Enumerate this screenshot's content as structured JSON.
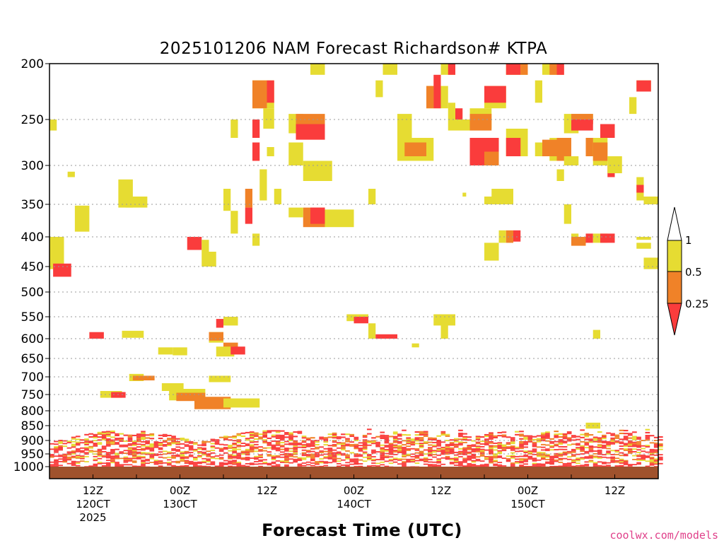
{
  "chart_data": {
    "type": "heatmap",
    "title": "2025101206 NAM Forecast Richardson# KTPA",
    "xlabel": "Forecast Time (UTC)",
    "ylabel": "",
    "credit": "coolwx.com/models",
    "y_scale": "pressure (log-like, inverted)",
    "ylim": [
      1000,
      200
    ],
    "xlim_hours": [
      0,
      84
    ],
    "grid": "dotted horizontal lines at pressure levels",
    "y_ticks": [
      "200",
      "250",
      "300",
      "350",
      "400",
      "450",
      "500",
      "550",
      "600",
      "650",
      "700",
      "750",
      "800",
      "850",
      "900",
      "950",
      "1000"
    ],
    "x_ticks": [
      {
        "hour": 6,
        "lines": [
          "12Z",
          "120CT",
          "2025"
        ]
      },
      {
        "hour": 18,
        "lines": [
          "00Z",
          "130CT"
        ]
      },
      {
        "hour": 30,
        "lines": [
          "12Z"
        ]
      },
      {
        "hour": 42,
        "lines": [
          "00Z",
          "140CT"
        ]
      },
      {
        "hour": 54,
        "lines": [
          "12Z"
        ]
      },
      {
        "hour": 66,
        "lines": [
          "00Z",
          "150CT"
        ]
      },
      {
        "hour": 78,
        "lines": [
          "12Z"
        ]
      }
    ],
    "colorbar": {
      "labels": [
        "1",
        "0.5",
        "0.25"
      ],
      "bins": [
        {
          "range": "0.5–1",
          "color": "#e6dc32"
        },
        {
          "range": "0.25–0.5",
          "color": "#f08228"
        },
        {
          "range": "<0.25",
          "color": "#fa3c3c"
        }
      ]
    },
    "colors": {
      "y": "#e6dc32",
      "o": "#f08228",
      "r": "#fa3c3c",
      "ground": "#a0522d"
    },
    "cells": [
      [
        "y",
        0,
        1,
        250,
        262
      ],
      [
        "y",
        0,
        2,
        400,
        455
      ],
      [
        "r",
        0.5,
        3,
        445,
        470
      ],
      [
        "y",
        2.5,
        3.5,
        308,
        315
      ],
      [
        "y",
        3.5,
        5.5,
        352,
        392
      ],
      [
        "y",
        9.5,
        11.5,
        318,
        355
      ],
      [
        "y",
        10,
        13,
        582,
        598
      ],
      [
        "r",
        5.5,
        7.5,
        585,
        600
      ],
      [
        "y",
        11,
        13,
        692,
        712
      ],
      [
        "o",
        11.5,
        14.5,
        697,
        710
      ],
      [
        "y",
        7,
        10,
        740,
        760
      ],
      [
        "r",
        8.5,
        10.5,
        743,
        760
      ],
      [
        "y",
        10.5,
        13.5,
        340,
        355
      ],
      [
        "r",
        19,
        21,
        400,
        422
      ],
      [
        "y",
        21,
        22,
        405,
        425
      ],
      [
        "y",
        21,
        23,
        425,
        450
      ],
      [
        "y",
        15.5,
        18.5,
        718,
        740
      ],
      [
        "y",
        16.5,
        21.5,
        734,
        768
      ],
      [
        "o",
        17.5,
        21.5,
        745,
        770
      ],
      [
        "o",
        20,
        25,
        757,
        795
      ],
      [
        "y",
        24,
        29,
        762,
        790
      ],
      [
        "y",
        22,
        25,
        697,
        715
      ],
      [
        "y",
        22,
        24,
        585,
        610
      ],
      [
        "o",
        22,
        24,
        585,
        605
      ],
      [
        "o",
        24,
        26,
        610,
        635
      ],
      [
        "y",
        23,
        25.5,
        620,
        645
      ],
      [
        "r",
        25,
        27,
        620,
        640
      ],
      [
        "y",
        17,
        19,
        622,
        642
      ],
      [
        "y",
        15,
        17,
        622,
        640
      ],
      [
        "y",
        24,
        26,
        550,
        570
      ],
      [
        "r",
        23,
        24,
        555,
        575
      ],
      [
        "y",
        24,
        25,
        330,
        360
      ],
      [
        "y",
        25,
        26,
        360,
        395
      ],
      [
        "o",
        27,
        28,
        330,
        355
      ],
      [
        "r",
        27,
        28,
        355,
        380
      ],
      [
        "y",
        25,
        26,
        250,
        270
      ],
      [
        "y",
        28,
        31,
        215,
        240
      ],
      [
        "o",
        28,
        30,
        215,
        240
      ],
      [
        "r",
        30,
        31,
        215,
        235
      ],
      [
        "r",
        28,
        29,
        250,
        270
      ],
      [
        "y",
        29.5,
        31,
        240,
        260
      ],
      [
        "r",
        28,
        29,
        275,
        295
      ],
      [
        "y",
        29,
        30,
        305,
        325
      ],
      [
        "y",
        30,
        31,
        280,
        290
      ],
      [
        "y",
        29,
        30,
        325,
        345
      ],
      [
        "y",
        31,
        32,
        330,
        350
      ],
      [
        "y",
        28,
        29,
        395,
        415
      ],
      [
        "y",
        33,
        35,
        245,
        265
      ],
      [
        "y",
        33,
        35,
        275,
        300
      ],
      [
        "o",
        34,
        38,
        245,
        265
      ],
      [
        "r",
        34,
        38,
        255,
        272
      ],
      [
        "y",
        35,
        39,
        295,
        320
      ],
      [
        "o",
        35,
        38,
        355,
        385
      ],
      [
        "r",
        36,
        38,
        355,
        380
      ],
      [
        "y",
        38,
        42,
        358,
        385
      ],
      [
        "y",
        33,
        35,
        355,
        370
      ],
      [
        "y",
        36,
        38,
        200,
        210
      ],
      [
        "y",
        46,
        48,
        200,
        210
      ],
      [
        "y",
        45,
        46,
        215,
        230
      ],
      [
        "y",
        48,
        50,
        245,
        270
      ],
      [
        "y",
        48,
        53,
        270,
        295
      ],
      [
        "o",
        49,
        52,
        275,
        290
      ],
      [
        "y",
        44,
        45,
        330,
        350
      ],
      [
        "y",
        41,
        44,
        545,
        560
      ],
      [
        "r",
        42,
        44,
        550,
        565
      ],
      [
        "y",
        44,
        45,
        565,
        600
      ],
      [
        "r",
        45,
        48,
        590,
        600
      ],
      [
        "y",
        53,
        56,
        545,
        570
      ],
      [
        "y",
        54,
        55,
        565,
        600
      ],
      [
        "y",
        50,
        51,
        612,
        622
      ],
      [
        "y",
        57,
        57.5,
        335,
        340
      ],
      [
        "y",
        52,
        55,
        220,
        240
      ],
      [
        "o",
        52,
        53,
        220,
        240
      ],
      [
        "r",
        53,
        54,
        210,
        240
      ],
      [
        "y",
        54,
        56,
        200,
        210
      ],
      [
        "r",
        55,
        56,
        200,
        210
      ],
      [
        "y",
        55,
        56,
        235,
        262
      ],
      [
        "r",
        56,
        57,
        240,
        255
      ],
      [
        "y",
        56,
        58,
        250,
        262
      ],
      [
        "y",
        58,
        60,
        290,
        300
      ],
      [
        "r",
        58,
        62,
        270,
        300
      ],
      [
        "o",
        60,
        62,
        285,
        300
      ],
      [
        "y",
        58,
        61,
        240,
        260
      ],
      [
        "o",
        58,
        61,
        245,
        262
      ],
      [
        "y",
        60,
        63,
        220,
        240
      ],
      [
        "r",
        60,
        63,
        220,
        235
      ],
      [
        "y",
        63,
        66,
        260,
        290
      ],
      [
        "r",
        63,
        65,
        270,
        290
      ],
      [
        "y",
        60,
        63,
        340,
        350
      ],
      [
        "y",
        61,
        64,
        330,
        350
      ],
      [
        "y",
        62,
        63,
        390,
        410
      ],
      [
        "o",
        63,
        64,
        390,
        410
      ],
      [
        "r",
        64,
        65,
        390,
        408
      ],
      [
        "y",
        60,
        62,
        410,
        440
      ],
      [
        "y",
        63,
        66,
        200,
        210
      ],
      [
        "r",
        63,
        64,
        200,
        210
      ],
      [
        "r",
        64,
        65,
        200,
        210
      ],
      [
        "o",
        65,
        66,
        200,
        210
      ],
      [
        "y",
        67,
        68,
        215,
        235
      ],
      [
        "y",
        68,
        70,
        200,
        210
      ],
      [
        "o",
        69,
        71,
        200,
        210
      ],
      [
        "r",
        70,
        71,
        200,
        210
      ],
      [
        "y",
        71,
        73,
        245,
        265
      ],
      [
        "y",
        69,
        71,
        270,
        295
      ],
      [
        "o",
        70,
        72,
        270,
        295
      ],
      [
        "y",
        67,
        69,
        275,
        290
      ],
      [
        "o",
        68,
        70,
        272,
        290
      ],
      [
        "y",
        72,
        75,
        245,
        255
      ],
      [
        "o",
        72,
        75,
        245,
        255
      ],
      [
        "r",
        72,
        75,
        250,
        262
      ],
      [
        "y",
        71,
        73,
        290,
        300
      ],
      [
        "y",
        71,
        72,
        350,
        380
      ],
      [
        "y",
        72,
        73,
        395,
        410
      ],
      [
        "o",
        72,
        74,
        400,
        415
      ],
      [
        "r",
        74,
        75,
        395,
        410
      ],
      [
        "y",
        74,
        76,
        270,
        290
      ],
      [
        "o",
        74,
        76,
        270,
        290
      ],
      [
        "y",
        70,
        71,
        305,
        320
      ],
      [
        "r",
        76,
        78,
        255,
        270
      ],
      [
        "y",
        75,
        77,
        270,
        300
      ],
      [
        "o",
        75,
        77,
        275,
        295
      ],
      [
        "r",
        77,
        78,
        300,
        315
      ],
      [
        "y",
        77,
        79,
        290,
        310
      ],
      [
        "y",
        81,
        83,
        215,
        225
      ],
      [
        "r",
        81,
        83,
        215,
        225
      ],
      [
        "y",
        80,
        81,
        230,
        245
      ],
      [
        "y",
        81,
        82,
        315,
        345
      ],
      [
        "r",
        81,
        82,
        325,
        335
      ],
      [
        "y",
        82,
        84,
        340,
        350
      ],
      [
        "y",
        81,
        83,
        400,
        405
      ],
      [
        "y",
        81,
        83,
        410,
        420
      ],
      [
        "y",
        82,
        84,
        435,
        455
      ],
      [
        "y",
        75,
        77,
        395,
        410
      ],
      [
        "r",
        76,
        78,
        395,
        410
      ],
      [
        "y",
        75,
        76,
        580,
        600
      ],
      [
        "y",
        74,
        76,
        840,
        860
      ]
    ],
    "low_band_note": "dense red/orange/yellow cells between ~850 and 1000 hPa across all hours; solid ground strip below 1000 hPa"
  }
}
